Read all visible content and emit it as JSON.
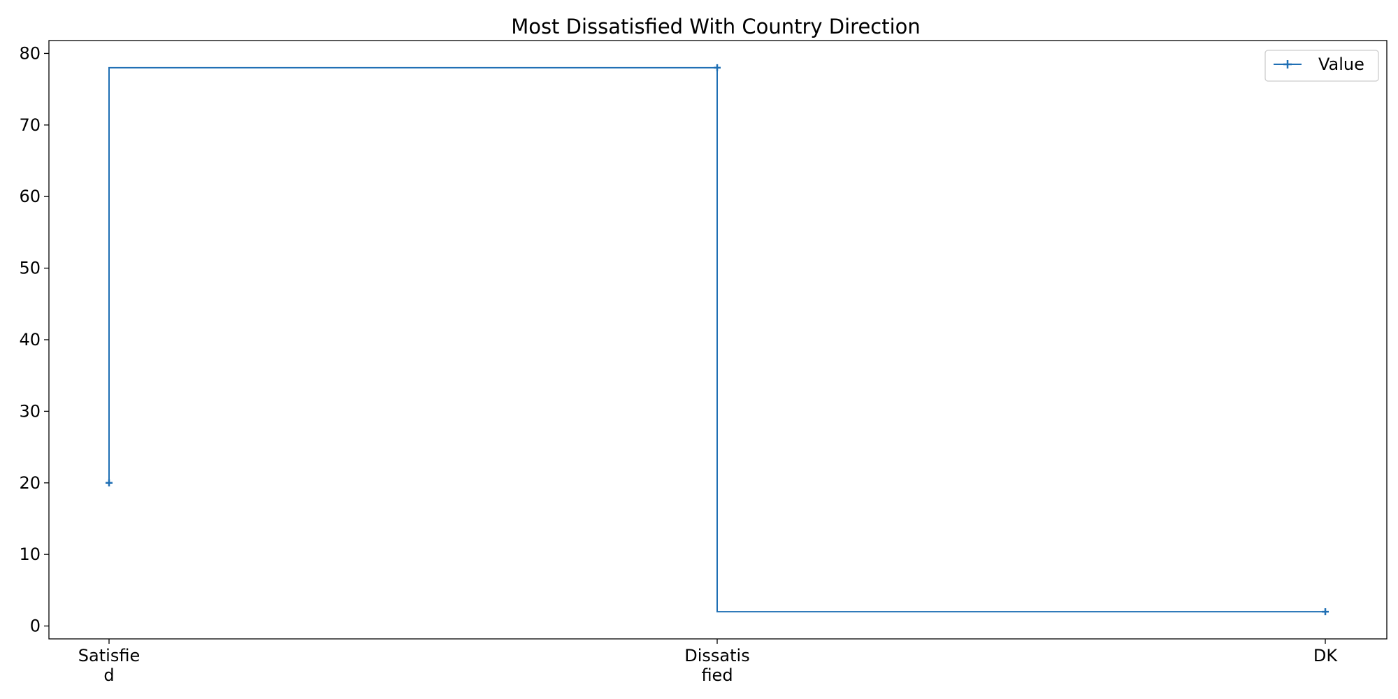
{
  "chart_data": {
    "type": "line",
    "drawstyle": "steps-pre",
    "title": "Most Dissatisfied With Country Direction",
    "xlabel": "",
    "ylabel": "",
    "categories": [
      "Satisfied",
      "Dissatisfied",
      "DK"
    ],
    "category_tick_lines": [
      [
        "Satisfie",
        "d"
      ],
      [
        "Dissatis",
        "fied"
      ],
      [
        "DK"
      ]
    ],
    "series": [
      {
        "name": "Value",
        "values": [
          20,
          78,
          2
        ],
        "color": "#1f6fb4",
        "marker": "plus"
      }
    ],
    "ylim": [
      -1.8,
      81.8
    ],
    "yticks": [
      0,
      10,
      20,
      30,
      40,
      50,
      60,
      70,
      80
    ],
    "grid": false,
    "legend_position": "top-right"
  }
}
